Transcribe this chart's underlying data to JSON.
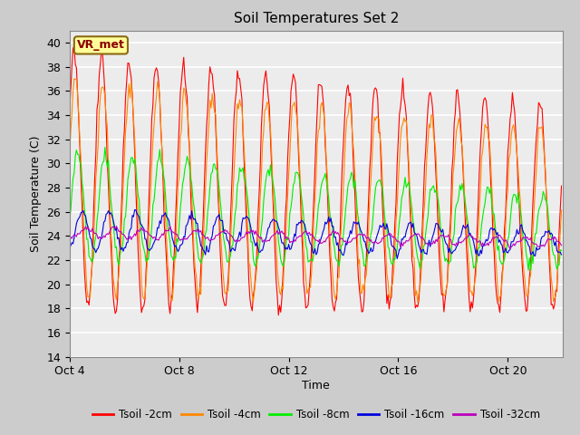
{
  "title": "Soil Temperatures Set 2",
  "xlabel": "Time",
  "ylabel": "Soil Temperature (C)",
  "ylim": [
    14,
    41
  ],
  "yticks": [
    14,
    16,
    18,
    20,
    22,
    24,
    26,
    28,
    30,
    32,
    34,
    36,
    38,
    40
  ],
  "xtick_labels": [
    "Oct 4",
    "Oct 8",
    "Oct 12",
    "Oct 16",
    "Oct 20"
  ],
  "xtick_positions": [
    0,
    4,
    8,
    12,
    16
  ],
  "xlim": [
    0,
    18
  ],
  "line_colors": {
    "2cm": "#ff0000",
    "4cm": "#ff8800",
    "8cm": "#00ee00",
    "16cm": "#0000dd",
    "32cm": "#bb00bb"
  },
  "legend_labels": [
    "Tsoil -2cm",
    "Tsoil -4cm",
    "Tsoil -8cm",
    "Tsoil -16cm",
    "Tsoil -32cm"
  ],
  "annotation_text": "VR_met",
  "annotation_color": "#8B0000",
  "annotation_bg": "#ffff99",
  "annotation_border": "#8B6914",
  "fig_width": 6.4,
  "fig_height": 4.8,
  "dpi": 100
}
